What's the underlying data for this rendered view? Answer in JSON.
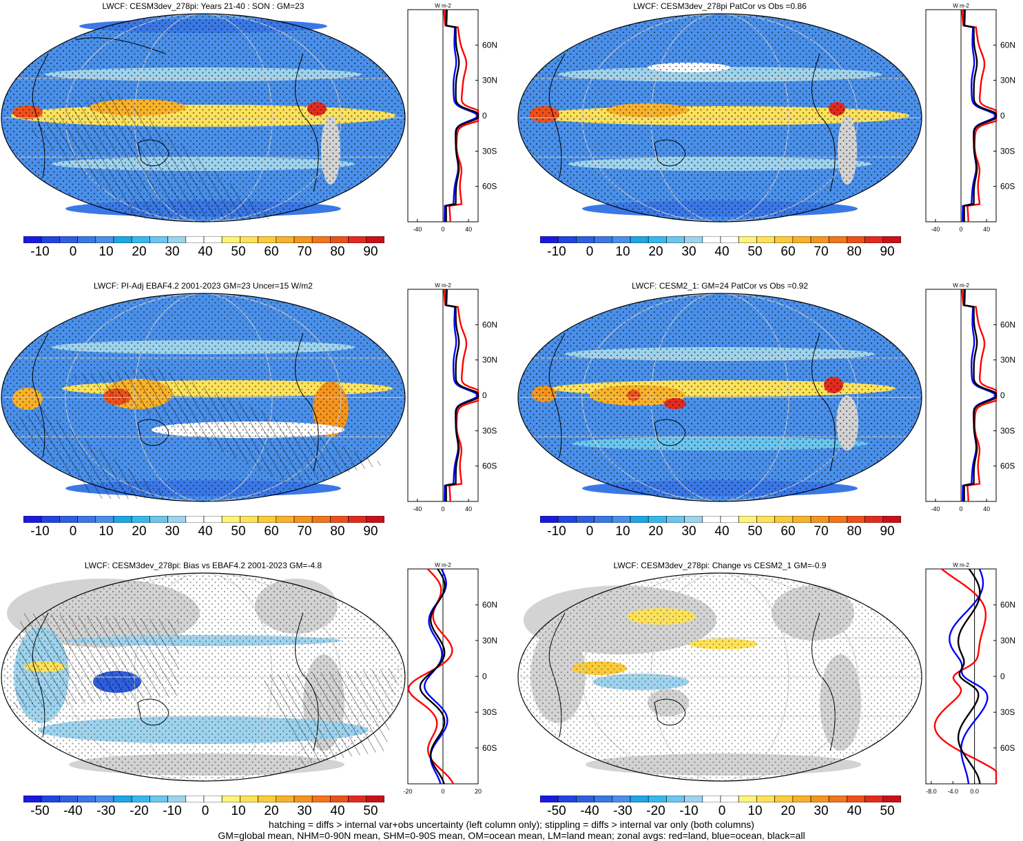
{
  "footer": {
    "line1": "hatching = diffs > internal var+obs uncertainty (left column only); stippling = diffs > internal var only (both columns)",
    "line2": "GM=global mean, NHM=0-90N mean, SHM=0-90S mean, OM=ocean mean, LM=land mean; zonal avgs: red=land, blue=ocean, black=all"
  },
  "colors": {
    "abs_scale": [
      "#1a1adf",
      "#2244e0",
      "#2f5fe0",
      "#3a78e6",
      "#4a90ea",
      "#1ea6e6",
      "#39b8ee",
      "#6cc6ee",
      "#9ed3ee",
      "#ffffff",
      "#ffffff",
      "#fff27a",
      "#fde25a",
      "#fbcb3a",
      "#f8b22a",
      "#f5951f",
      "#f2761c",
      "#ee501c",
      "#e22b1f",
      "#c8101b"
    ],
    "diff_scale": [
      "#1a1adf",
      "#2244e0",
      "#2f5fe0",
      "#3a78e6",
      "#4a90ea",
      "#1ea6e6",
      "#39b8ee",
      "#6cc6ee",
      "#9ed3ee",
      "#ffffff",
      "#ffffff",
      "#fff27a",
      "#fde25a",
      "#fbcb3a",
      "#f8b22a",
      "#f5951f",
      "#f2761c",
      "#ee501c",
      "#e22b1f",
      "#c8101b"
    ],
    "land_line": "#ff0000",
    "ocean_line": "#0000ff",
    "all_line": "#000000",
    "land_fill": "#d3d3d3"
  },
  "panels": [
    {
      "title": "LWCF: CESM3dev_278pi: Years 21-40 : SON : GM=23",
      "style": "abs",
      "cbar_labels": [
        "-10",
        "0",
        "10",
        "20",
        "30",
        "40",
        "50",
        "60",
        "70",
        "80",
        "90"
      ],
      "zonal": {
        "units": "W m-2",
        "xticks": [
          "-40",
          "0",
          "40"
        ],
        "xmin": -55,
        "xmax": 55
      }
    },
    {
      "title": "LWCF: CESM3dev_278pi PatCor vs Obs =0.86",
      "style": "abs",
      "cbar_labels": [
        "-10",
        "0",
        "10",
        "20",
        "30",
        "40",
        "50",
        "60",
        "70",
        "80",
        "90"
      ],
      "zonal": {
        "units": "W m-2",
        "xticks": [
          "-40",
          "0",
          "40"
        ],
        "xmin": -55,
        "xmax": 55
      }
    },
    {
      "title": "LWCF: PI-Adj EBAF4.2 2001-2023 GM=23 Uncer=15 W/m2",
      "style": "abs",
      "cbar_labels": [
        "-10",
        "0",
        "10",
        "20",
        "30",
        "40",
        "50",
        "60",
        "70",
        "80",
        "90"
      ],
      "zonal": {
        "units": "W m-2",
        "xticks": [
          "-40",
          "0",
          "40"
        ],
        "xmin": -55,
        "xmax": 55
      }
    },
    {
      "title": "LWCF: CESM2_1: GM=24 PatCor vs Obs =0.92",
      "style": "abs",
      "cbar_labels": [
        "-10",
        "0",
        "10",
        "20",
        "30",
        "40",
        "50",
        "60",
        "70",
        "80",
        "90"
      ],
      "zonal": {
        "units": "W m-2",
        "xticks": [
          "-40",
          "0",
          "40"
        ],
        "xmin": -55,
        "xmax": 55
      }
    },
    {
      "title": "LWCF: CESM3dev_278pi: Bias vs EBAF4.2 2001-2023  GM=-4.8",
      "style": "diff",
      "cbar_labels": [
        "-50",
        "-40",
        "-30",
        "-20",
        "-10",
        "0",
        "10",
        "20",
        "30",
        "40",
        "50"
      ],
      "zonal": {
        "units": "W m-2",
        "xticks": [
          "-20",
          "0",
          "20"
        ],
        "xmin": -20,
        "xmax": 20
      }
    },
    {
      "title": "LWCF: CESM3dev_278pi: Change vs CESM2_1 GM=-0.9",
      "style": "diff",
      "cbar_labels": [
        "-50",
        "-40",
        "-30",
        "-20",
        "-10",
        "0",
        "10",
        "20",
        "30",
        "40",
        "50"
      ],
      "zonal": {
        "units": "W m-2",
        "xticks": [
          "-8.0",
          "-4.0",
          "0.0"
        ],
        "xmin": -9,
        "xmax": 4
      }
    }
  ],
  "zonal_lat_labels": [
    "60N",
    "30N",
    "0",
    "30S",
    "60S"
  ]
}
